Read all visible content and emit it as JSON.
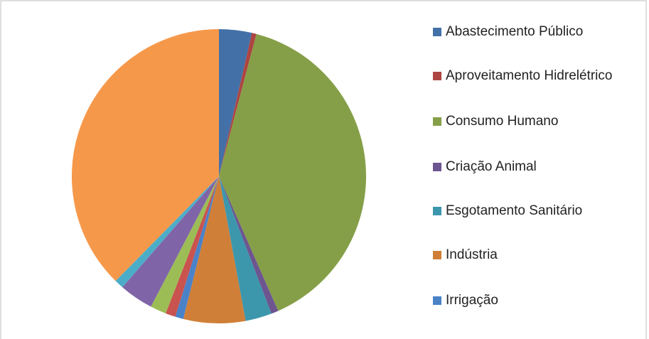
{
  "chart_data": {
    "type": "pie",
    "categories": [
      "Abastecimento Público",
      "Aproveitamento Hidrelétrico",
      "Consumo Humano",
      "Criação Animal",
      "Esgotamento Sanitário",
      "Indústria",
      "Irrigação",
      null,
      null,
      null,
      null,
      null
    ],
    "values": [
      3.6,
      0.5,
      39.3,
      0.8,
      2.9,
      6.8,
      0.9,
      1.1,
      1.75,
      3.75,
      1.0,
      37.6
    ],
    "colors": [
      "#4470a8",
      "#ad4542",
      "#859f48",
      "#6d5590",
      "#3c97ad",
      "#d07f38",
      "#4a82c8",
      "#c9534f",
      "#9cbd56",
      "#8064a8",
      "#4cadc8",
      "#f6984a"
    ],
    "legend": "right"
  }
}
